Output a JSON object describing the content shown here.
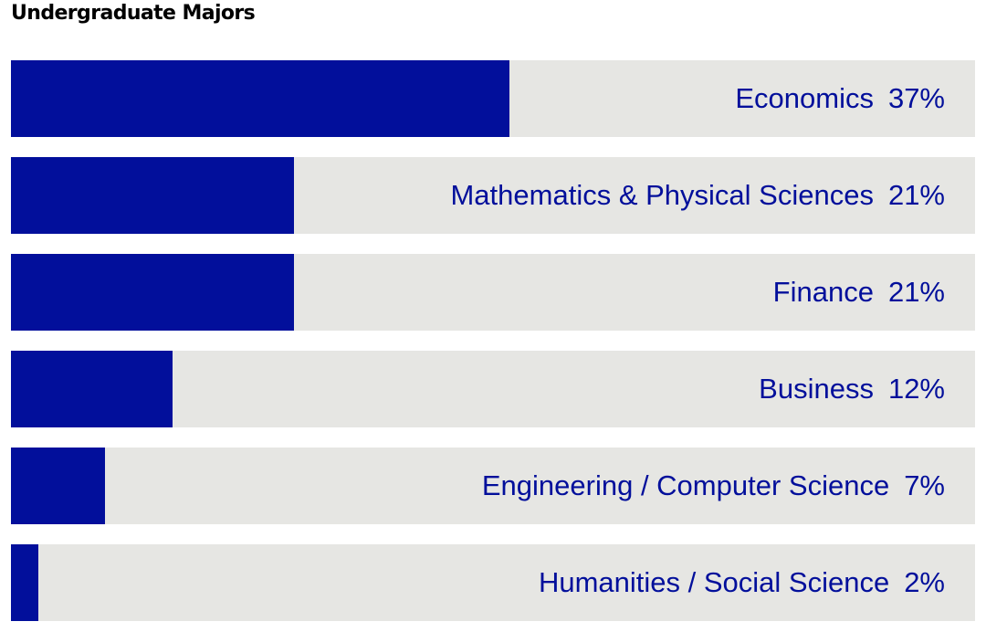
{
  "title": "Undergraduate Majors",
  "colors": {
    "bar": "#020f9b",
    "track": "#e6e6e3",
    "label": "#020f9b"
  },
  "chart_data": {
    "type": "bar",
    "orientation": "horizontal",
    "title": "Undergraduate Majors",
    "categories": [
      "Economics",
      "Mathematics & Physical Sciences",
      "Finance",
      "Business",
      "Engineering / Computer Science",
      "Humanities / Social Science"
    ],
    "values": [
      37,
      21,
      21,
      12,
      7,
      2
    ],
    "value_labels": [
      "37%",
      "21%",
      "21%",
      "12%",
      "7%",
      "2%"
    ],
    "unit": "%",
    "xlim": [
      0,
      71.5
    ],
    "grid": false,
    "legend": "none"
  }
}
